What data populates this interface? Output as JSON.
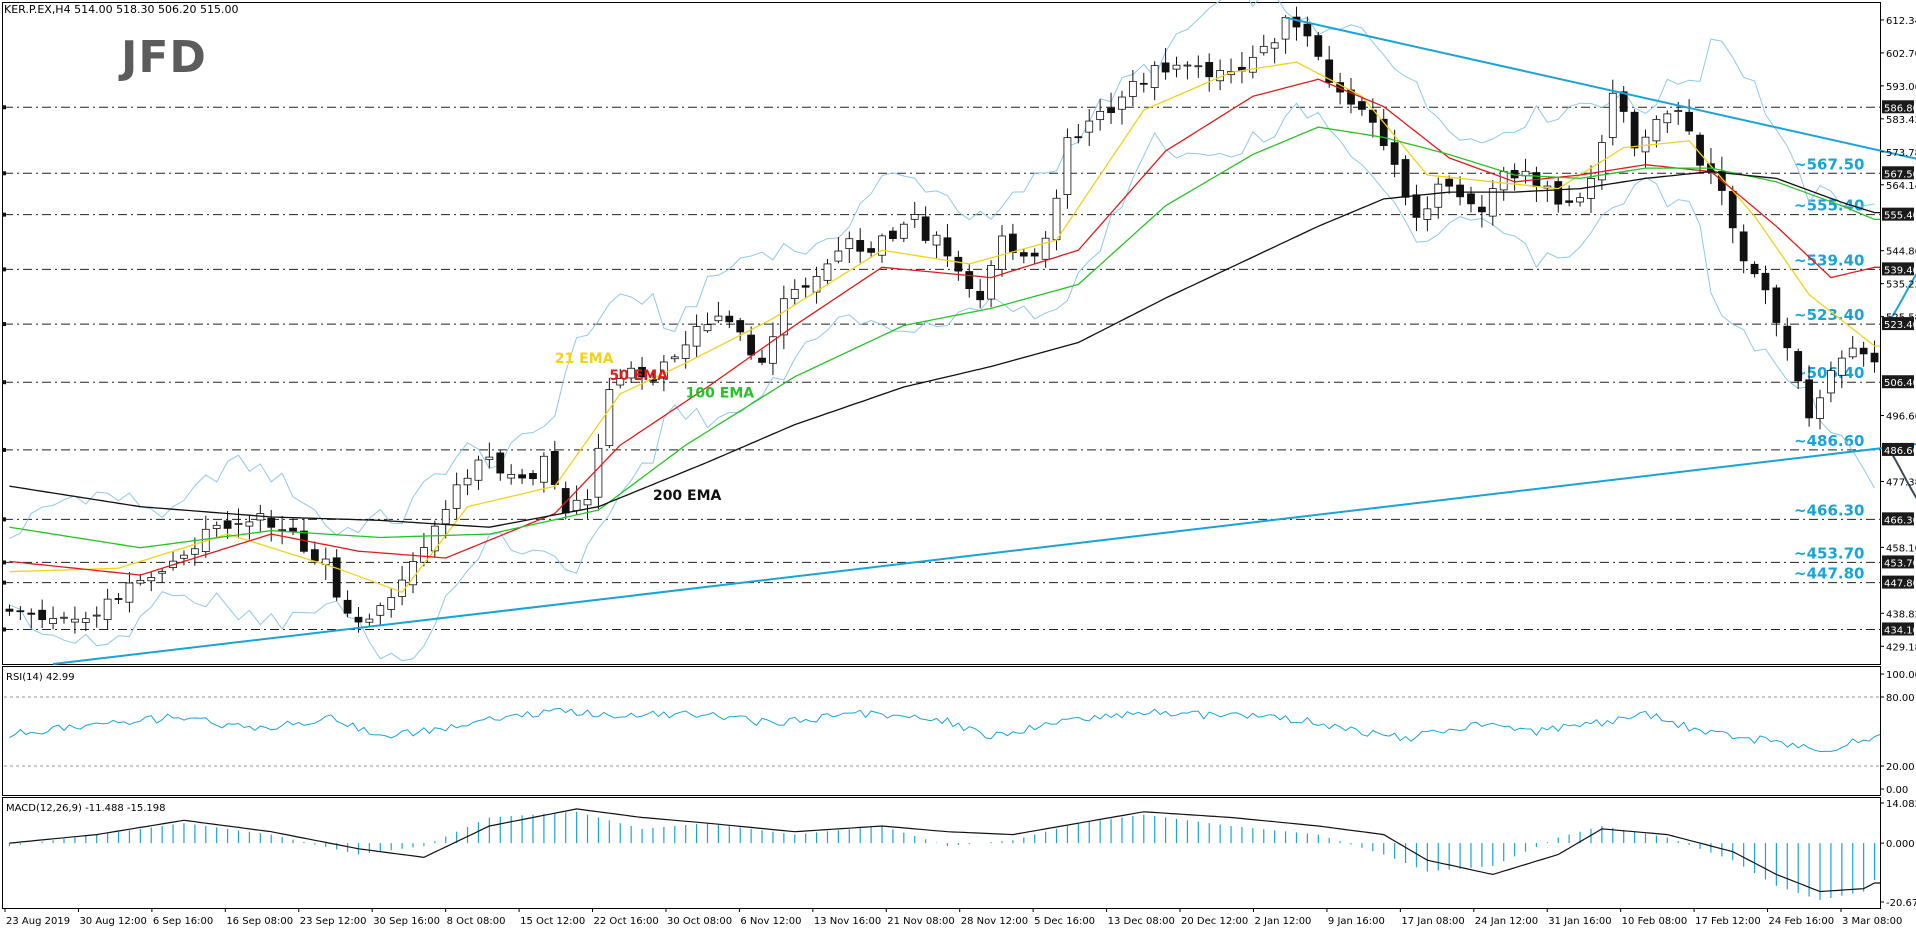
{
  "header": {
    "symbol_line": "KER.P.EX,H4  514.00 518.30 506.20 515.00",
    "logo_text": "JFD"
  },
  "colors": {
    "ema21": "#f2d21a",
    "ema50": "#e01b1b",
    "ema100": "#27c227",
    "ema200": "#111111",
    "bollinger": "#8ec9e8",
    "trendline": "#1aa3d9",
    "level_label": "#1aa3d9",
    "up_arrow": "#1aa3d9",
    "down_arrow": "#3b4a56",
    "rsi_line": "#1aa3d9",
    "macd_hist": "#1aa3d9",
    "macd_signal": "#111111"
  },
  "chart_data": {
    "type": "candlestick",
    "price_range": [
      424,
      617
    ],
    "price_ticks": [
      "612.34",
      "602.70",
      "593.06",
      "583.42",
      "573.78",
      "564.14",
      "544.86",
      "535.22",
      "525.58",
      "496.66",
      "477.38",
      "458.10",
      "438.82",
      "429.18"
    ],
    "levels": [
      {
        "value": 586.8,
        "label": "~586.80",
        "axis": "586.80",
        "show_label": false
      },
      {
        "value": 567.5,
        "label": "~567.50",
        "axis": "567.50",
        "show_label": true
      },
      {
        "value": 555.4,
        "label": "~555.40",
        "axis": "555.40",
        "show_label": true
      },
      {
        "value": 539.4,
        "label": "~539.40",
        "axis": "539.40",
        "show_label": true
      },
      {
        "value": 523.4,
        "label": "~523.40",
        "axis": "523.40",
        "show_label": true
      },
      {
        "value": 506.4,
        "label": "~506.40",
        "axis": "506.40",
        "show_label": true
      },
      {
        "value": 486.6,
        "label": "~486.60",
        "axis": "486.60",
        "show_label": true
      },
      {
        "value": 466.3,
        "label": "~466.30",
        "axis": "466.30",
        "show_label": true
      },
      {
        "value": 453.7,
        "label": "~453.70",
        "axis": "453.70",
        "show_label": true
      },
      {
        "value": 447.8,
        "label": "~447.80",
        "axis": "447.80",
        "show_label": true
      },
      {
        "value": 434.1,
        "label": "~434.10",
        "axis": "434.10",
        "show_label": false
      }
    ],
    "x_labels": [
      "23 Aug 2019",
      "30 Aug 12:00",
      "6 Sep 16:00",
      "16 Sep 08:00",
      "23 Sep 12:00",
      "30 Sep 16:00",
      "8 Oct 08:00",
      "15 Oct 12:00",
      "22 Oct 16:00",
      "30 Oct 08:00",
      "6 Nov 12:00",
      "13 Nov 16:00",
      "21 Nov 08:00",
      "28 Nov 12:00",
      "5 Dec 16:00",
      "13 Dec 08:00",
      "20 Dec 12:00",
      "2 Jan 12:00",
      "9 Jan 16:00",
      "17 Jan 08:00",
      "24 Jan 12:00",
      "31 Jan 16:00",
      "10 Feb 08:00",
      "17 Feb 12:00",
      "24 Feb 16:00",
      "3 Mar 08:00"
    ],
    "price_path": [
      [
        0,
        441
      ],
      [
        4,
        436
      ],
      [
        8,
        440
      ],
      [
        11,
        448
      ],
      [
        14,
        452
      ],
      [
        17,
        458
      ],
      [
        19,
        464
      ],
      [
        21,
        463
      ],
      [
        23,
        466
      ],
      [
        26,
        462
      ],
      [
        29,
        454
      ],
      [
        31,
        437
      ],
      [
        33,
        439
      ],
      [
        35,
        444
      ],
      [
        38,
        458
      ],
      [
        41,
        474
      ],
      [
        43,
        485
      ],
      [
        45,
        479
      ],
      [
        47,
        477
      ],
      [
        49,
        484
      ],
      [
        51,
        470
      ],
      [
        53,
        472
      ],
      [
        55,
        503
      ],
      [
        57,
        508
      ],
      [
        59,
        507
      ],
      [
        61,
        515
      ],
      [
        63,
        521
      ],
      [
        65,
        525
      ],
      [
        67,
        520
      ],
      [
        69,
        510
      ],
      [
        71,
        529
      ],
      [
        73,
        535
      ],
      [
        75,
        542
      ],
      [
        77,
        548
      ],
      [
        79,
        546
      ],
      [
        81,
        550
      ],
      [
        83,
        553
      ],
      [
        85,
        547
      ],
      [
        87,
        537
      ],
      [
        89,
        533
      ],
      [
        91,
        548
      ],
      [
        93,
        541
      ],
      [
        95,
        548
      ],
      [
        97,
        576
      ],
      [
        99,
        581
      ],
      [
        101,
        586
      ],
      [
        103,
        593
      ],
      [
        105,
        598
      ],
      [
        107,
        601
      ],
      [
        109,
        597
      ],
      [
        111,
        599
      ],
      [
        113,
        596
      ],
      [
        115,
        603
      ],
      [
        117,
        613
      ],
      [
        119,
        608
      ],
      [
        121,
        596
      ],
      [
        123,
        588
      ],
      [
        125,
        580
      ],
      [
        127,
        569
      ],
      [
        129,
        553
      ],
      [
        131,
        565
      ],
      [
        133,
        559
      ],
      [
        135,
        556
      ],
      [
        137,
        567
      ],
      [
        139,
        570
      ],
      [
        141,
        562
      ],
      [
        143,
        559
      ],
      [
        145,
        566
      ],
      [
        147,
        590
      ],
      [
        149,
        577
      ],
      [
        151,
        581
      ],
      [
        153,
        588
      ],
      [
        155,
        570
      ],
      [
        157,
        562
      ],
      [
        159,
        540
      ],
      [
        161,
        532
      ],
      [
        163,
        515
      ],
      [
        165,
        497
      ],
      [
        167,
        509
      ],
      [
        169,
        517
      ],
      [
        171,
        512
      ]
    ],
    "series": [
      {
        "name": "21 EMA",
        "points": [
          [
            0,
            451
          ],
          [
            10,
            452
          ],
          [
            20,
            462
          ],
          [
            30,
            452
          ],
          [
            36,
            445
          ],
          [
            42,
            470
          ],
          [
            50,
            476
          ],
          [
            56,
            503
          ],
          [
            62,
            512
          ],
          [
            70,
            525
          ],
          [
            80,
            545
          ],
          [
            88,
            541
          ],
          [
            96,
            548
          ],
          [
            104,
            586
          ],
          [
            112,
            597
          ],
          [
            118,
            600
          ],
          [
            124,
            590
          ],
          [
            130,
            567
          ],
          [
            136,
            565
          ],
          [
            142,
            563
          ],
          [
            148,
            575
          ],
          [
            154,
            577
          ],
          [
            160,
            555
          ],
          [
            165,
            532
          ],
          [
            171,
            517
          ]
        ]
      },
      {
        "name": "50 EMA",
        "points": [
          [
            0,
            454
          ],
          [
            12,
            450
          ],
          [
            24,
            462
          ],
          [
            32,
            457
          ],
          [
            40,
            455
          ],
          [
            50,
            468
          ],
          [
            56,
            488
          ],
          [
            64,
            505
          ],
          [
            72,
            523
          ],
          [
            80,
            540
          ],
          [
            90,
            537
          ],
          [
            98,
            545
          ],
          [
            106,
            574
          ],
          [
            114,
            590
          ],
          [
            120,
            595
          ],
          [
            126,
            587
          ],
          [
            132,
            572
          ],
          [
            138,
            565
          ],
          [
            144,
            567
          ],
          [
            150,
            570
          ],
          [
            156,
            568
          ],
          [
            162,
            552
          ],
          [
            167,
            537
          ],
          [
            171,
            540
          ]
        ]
      },
      {
        "name": "100 EMA",
        "points": [
          [
            0,
            464
          ],
          [
            12,
            458
          ],
          [
            24,
            463
          ],
          [
            34,
            461
          ],
          [
            44,
            462
          ],
          [
            54,
            469
          ],
          [
            62,
            488
          ],
          [
            72,
            508
          ],
          [
            82,
            523
          ],
          [
            90,
            528
          ],
          [
            98,
            535
          ],
          [
            106,
            558
          ],
          [
            114,
            573
          ],
          [
            120,
            581
          ],
          [
            126,
            578
          ],
          [
            132,
            573
          ],
          [
            138,
            567
          ],
          [
            144,
            566
          ],
          [
            150,
            569
          ],
          [
            156,
            569
          ],
          [
            162,
            565
          ],
          [
            168,
            558
          ],
          [
            171,
            554
          ]
        ]
      },
      {
        "name": "200 EMA",
        "points": [
          [
            0,
            476
          ],
          [
            12,
            470
          ],
          [
            24,
            467
          ],
          [
            34,
            466
          ],
          [
            44,
            464
          ],
          [
            54,
            470
          ],
          [
            64,
            483
          ],
          [
            72,
            494
          ],
          [
            82,
            505
          ],
          [
            90,
            511
          ],
          [
            98,
            518
          ],
          [
            106,
            531
          ],
          [
            114,
            543
          ],
          [
            120,
            552
          ],
          [
            126,
            560
          ],
          [
            132,
            562
          ],
          [
            138,
            562
          ],
          [
            144,
            563
          ],
          [
            150,
            566
          ],
          [
            156,
            568
          ],
          [
            162,
            566
          ],
          [
            168,
            559
          ],
          [
            171,
            556
          ]
        ]
      }
    ],
    "trendlines": [
      {
        "from": [
          4,
          424
        ],
        "to": [
          178,
          489.5
        ]
      },
      {
        "from": [
          117,
          613
        ],
        "to": [
          178,
          569.5
        ]
      }
    ],
    "annotations": [
      "21 EMA",
      "50 EMA",
      "100 EMA",
      "200 EMA"
    ],
    "rsi": {
      "header": "RSI(14) 42.99",
      "ticks": [
        "100.00",
        "80.00",
        "20.00",
        "0.00"
      ],
      "path": [
        [
          0,
          47
        ],
        [
          8,
          56
        ],
        [
          16,
          63
        ],
        [
          22,
          52
        ],
        [
          30,
          62
        ],
        [
          34,
          44
        ],
        [
          42,
          57
        ],
        [
          50,
          68
        ],
        [
          56,
          63
        ],
        [
          62,
          66
        ],
        [
          70,
          57
        ],
        [
          78,
          66
        ],
        [
          86,
          59
        ],
        [
          90,
          45
        ],
        [
          96,
          58
        ],
        [
          104,
          67
        ],
        [
          112,
          63
        ],
        [
          118,
          61
        ],
        [
          124,
          50
        ],
        [
          128,
          44
        ],
        [
          134,
          56
        ],
        [
          140,
          50
        ],
        [
          146,
          58
        ],
        [
          150,
          66
        ],
        [
          154,
          53
        ],
        [
          158,
          46
        ],
        [
          164,
          38
        ],
        [
          167,
          32
        ],
        [
          169,
          42
        ],
        [
          171,
          45
        ]
      ]
    },
    "macd": {
      "header": "MACD(12,26,9) -11.488 -15.198",
      "ticks": [
        "14.082",
        "0.000",
        "-20.676"
      ],
      "hist_path": [
        [
          0,
          -1
        ],
        [
          8,
          3
        ],
        [
          16,
          7
        ],
        [
          24,
          3
        ],
        [
          32,
          -4
        ],
        [
          38,
          -1
        ],
        [
          44,
          9
        ],
        [
          52,
          11
        ],
        [
          58,
          5
        ],
        [
          64,
          7
        ],
        [
          72,
          3
        ],
        [
          80,
          6
        ],
        [
          86,
          -1
        ],
        [
          92,
          1
        ],
        [
          98,
          7
        ],
        [
          104,
          10
        ],
        [
          112,
          6
        ],
        [
          120,
          3
        ],
        [
          126,
          -4
        ],
        [
          130,
          -10
        ],
        [
          136,
          -8
        ],
        [
          142,
          2
        ],
        [
          146,
          6
        ],
        [
          152,
          2
        ],
        [
          158,
          -6
        ],
        [
          162,
          -15
        ],
        [
          166,
          -20
        ],
        [
          170,
          -17
        ],
        [
          171,
          -13
        ]
      ],
      "signal_path": [
        [
          0,
          0
        ],
        [
          8,
          3
        ],
        [
          16,
          8
        ],
        [
          24,
          4
        ],
        [
          32,
          -2
        ],
        [
          38,
          -5
        ],
        [
          44,
          6
        ],
        [
          52,
          12
        ],
        [
          58,
          9
        ],
        [
          64,
          7
        ],
        [
          72,
          4
        ],
        [
          80,
          6
        ],
        [
          86,
          4
        ],
        [
          92,
          3
        ],
        [
          98,
          7
        ],
        [
          104,
          11
        ],
        [
          112,
          9
        ],
        [
          120,
          6
        ],
        [
          126,
          3
        ],
        [
          130,
          -6
        ],
        [
          136,
          -11
        ],
        [
          142,
          -4
        ],
        [
          146,
          5
        ],
        [
          152,
          3
        ],
        [
          158,
          -3
        ],
        [
          162,
          -11
        ],
        [
          166,
          -17
        ],
        [
          170,
          -16
        ],
        [
          171,
          -14
        ]
      ]
    }
  }
}
